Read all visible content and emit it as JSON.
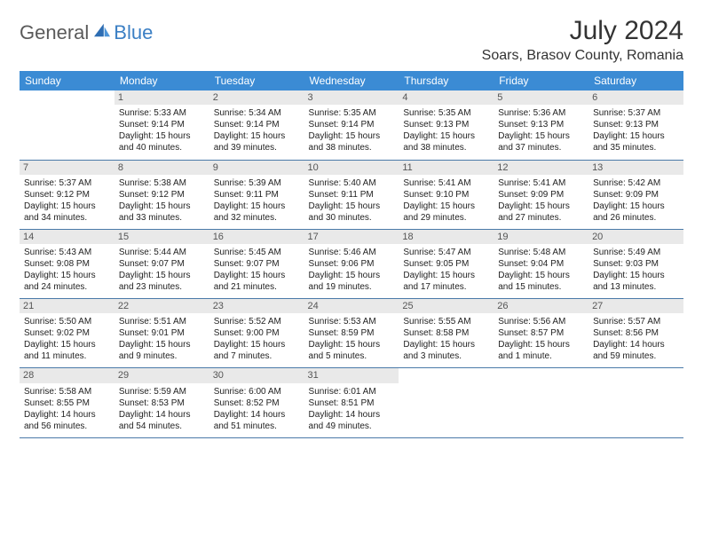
{
  "logo": {
    "word1": "General",
    "word2": "Blue"
  },
  "title": {
    "monthYear": "July 2024",
    "location": "Soars, Brasov County, Romania"
  },
  "colors": {
    "headerBg": "#3b8bd4",
    "headerText": "#ffffff",
    "dayNumBg": "#e9e9e9",
    "rowBorder": "#4a7aa8",
    "logoBlue": "#3b7fc4",
    "logoGray": "#5a5a5a"
  },
  "weekdays": [
    "Sunday",
    "Monday",
    "Tuesday",
    "Wednesday",
    "Thursday",
    "Friday",
    "Saturday"
  ],
  "weeks": [
    [
      {
        "empty": true
      },
      {
        "day": "1",
        "sunrise": "Sunrise: 5:33 AM",
        "sunset": "Sunset: 9:14 PM",
        "daylight1": "Daylight: 15 hours",
        "daylight2": "and 40 minutes."
      },
      {
        "day": "2",
        "sunrise": "Sunrise: 5:34 AM",
        "sunset": "Sunset: 9:14 PM",
        "daylight1": "Daylight: 15 hours",
        "daylight2": "and 39 minutes."
      },
      {
        "day": "3",
        "sunrise": "Sunrise: 5:35 AM",
        "sunset": "Sunset: 9:14 PM",
        "daylight1": "Daylight: 15 hours",
        "daylight2": "and 38 minutes."
      },
      {
        "day": "4",
        "sunrise": "Sunrise: 5:35 AM",
        "sunset": "Sunset: 9:13 PM",
        "daylight1": "Daylight: 15 hours",
        "daylight2": "and 38 minutes."
      },
      {
        "day": "5",
        "sunrise": "Sunrise: 5:36 AM",
        "sunset": "Sunset: 9:13 PM",
        "daylight1": "Daylight: 15 hours",
        "daylight2": "and 37 minutes."
      },
      {
        "day": "6",
        "sunrise": "Sunrise: 5:37 AM",
        "sunset": "Sunset: 9:13 PM",
        "daylight1": "Daylight: 15 hours",
        "daylight2": "and 35 minutes."
      }
    ],
    [
      {
        "day": "7",
        "sunrise": "Sunrise: 5:37 AM",
        "sunset": "Sunset: 9:12 PM",
        "daylight1": "Daylight: 15 hours",
        "daylight2": "and 34 minutes."
      },
      {
        "day": "8",
        "sunrise": "Sunrise: 5:38 AM",
        "sunset": "Sunset: 9:12 PM",
        "daylight1": "Daylight: 15 hours",
        "daylight2": "and 33 minutes."
      },
      {
        "day": "9",
        "sunrise": "Sunrise: 5:39 AM",
        "sunset": "Sunset: 9:11 PM",
        "daylight1": "Daylight: 15 hours",
        "daylight2": "and 32 minutes."
      },
      {
        "day": "10",
        "sunrise": "Sunrise: 5:40 AM",
        "sunset": "Sunset: 9:11 PM",
        "daylight1": "Daylight: 15 hours",
        "daylight2": "and 30 minutes."
      },
      {
        "day": "11",
        "sunrise": "Sunrise: 5:41 AM",
        "sunset": "Sunset: 9:10 PM",
        "daylight1": "Daylight: 15 hours",
        "daylight2": "and 29 minutes."
      },
      {
        "day": "12",
        "sunrise": "Sunrise: 5:41 AM",
        "sunset": "Sunset: 9:09 PM",
        "daylight1": "Daylight: 15 hours",
        "daylight2": "and 27 minutes."
      },
      {
        "day": "13",
        "sunrise": "Sunrise: 5:42 AM",
        "sunset": "Sunset: 9:09 PM",
        "daylight1": "Daylight: 15 hours",
        "daylight2": "and 26 minutes."
      }
    ],
    [
      {
        "day": "14",
        "sunrise": "Sunrise: 5:43 AM",
        "sunset": "Sunset: 9:08 PM",
        "daylight1": "Daylight: 15 hours",
        "daylight2": "and 24 minutes."
      },
      {
        "day": "15",
        "sunrise": "Sunrise: 5:44 AM",
        "sunset": "Sunset: 9:07 PM",
        "daylight1": "Daylight: 15 hours",
        "daylight2": "and 23 minutes."
      },
      {
        "day": "16",
        "sunrise": "Sunrise: 5:45 AM",
        "sunset": "Sunset: 9:07 PM",
        "daylight1": "Daylight: 15 hours",
        "daylight2": "and 21 minutes."
      },
      {
        "day": "17",
        "sunrise": "Sunrise: 5:46 AM",
        "sunset": "Sunset: 9:06 PM",
        "daylight1": "Daylight: 15 hours",
        "daylight2": "and 19 minutes."
      },
      {
        "day": "18",
        "sunrise": "Sunrise: 5:47 AM",
        "sunset": "Sunset: 9:05 PM",
        "daylight1": "Daylight: 15 hours",
        "daylight2": "and 17 minutes."
      },
      {
        "day": "19",
        "sunrise": "Sunrise: 5:48 AM",
        "sunset": "Sunset: 9:04 PM",
        "daylight1": "Daylight: 15 hours",
        "daylight2": "and 15 minutes."
      },
      {
        "day": "20",
        "sunrise": "Sunrise: 5:49 AM",
        "sunset": "Sunset: 9:03 PM",
        "daylight1": "Daylight: 15 hours",
        "daylight2": "and 13 minutes."
      }
    ],
    [
      {
        "day": "21",
        "sunrise": "Sunrise: 5:50 AM",
        "sunset": "Sunset: 9:02 PM",
        "daylight1": "Daylight: 15 hours",
        "daylight2": "and 11 minutes."
      },
      {
        "day": "22",
        "sunrise": "Sunrise: 5:51 AM",
        "sunset": "Sunset: 9:01 PM",
        "daylight1": "Daylight: 15 hours",
        "daylight2": "and 9 minutes."
      },
      {
        "day": "23",
        "sunrise": "Sunrise: 5:52 AM",
        "sunset": "Sunset: 9:00 PM",
        "daylight1": "Daylight: 15 hours",
        "daylight2": "and 7 minutes."
      },
      {
        "day": "24",
        "sunrise": "Sunrise: 5:53 AM",
        "sunset": "Sunset: 8:59 PM",
        "daylight1": "Daylight: 15 hours",
        "daylight2": "and 5 minutes."
      },
      {
        "day": "25",
        "sunrise": "Sunrise: 5:55 AM",
        "sunset": "Sunset: 8:58 PM",
        "daylight1": "Daylight: 15 hours",
        "daylight2": "and 3 minutes."
      },
      {
        "day": "26",
        "sunrise": "Sunrise: 5:56 AM",
        "sunset": "Sunset: 8:57 PM",
        "daylight1": "Daylight: 15 hours",
        "daylight2": "and 1 minute."
      },
      {
        "day": "27",
        "sunrise": "Sunrise: 5:57 AM",
        "sunset": "Sunset: 8:56 PM",
        "daylight1": "Daylight: 14 hours",
        "daylight2": "and 59 minutes."
      }
    ],
    [
      {
        "day": "28",
        "sunrise": "Sunrise: 5:58 AM",
        "sunset": "Sunset: 8:55 PM",
        "daylight1": "Daylight: 14 hours",
        "daylight2": "and 56 minutes."
      },
      {
        "day": "29",
        "sunrise": "Sunrise: 5:59 AM",
        "sunset": "Sunset: 8:53 PM",
        "daylight1": "Daylight: 14 hours",
        "daylight2": "and 54 minutes."
      },
      {
        "day": "30",
        "sunrise": "Sunrise: 6:00 AM",
        "sunset": "Sunset: 8:52 PM",
        "daylight1": "Daylight: 14 hours",
        "daylight2": "and 51 minutes."
      },
      {
        "day": "31",
        "sunrise": "Sunrise: 6:01 AM",
        "sunset": "Sunset: 8:51 PM",
        "daylight1": "Daylight: 14 hours",
        "daylight2": "and 49 minutes."
      },
      {
        "empty": true
      },
      {
        "empty": true
      },
      {
        "empty": true
      }
    ]
  ]
}
